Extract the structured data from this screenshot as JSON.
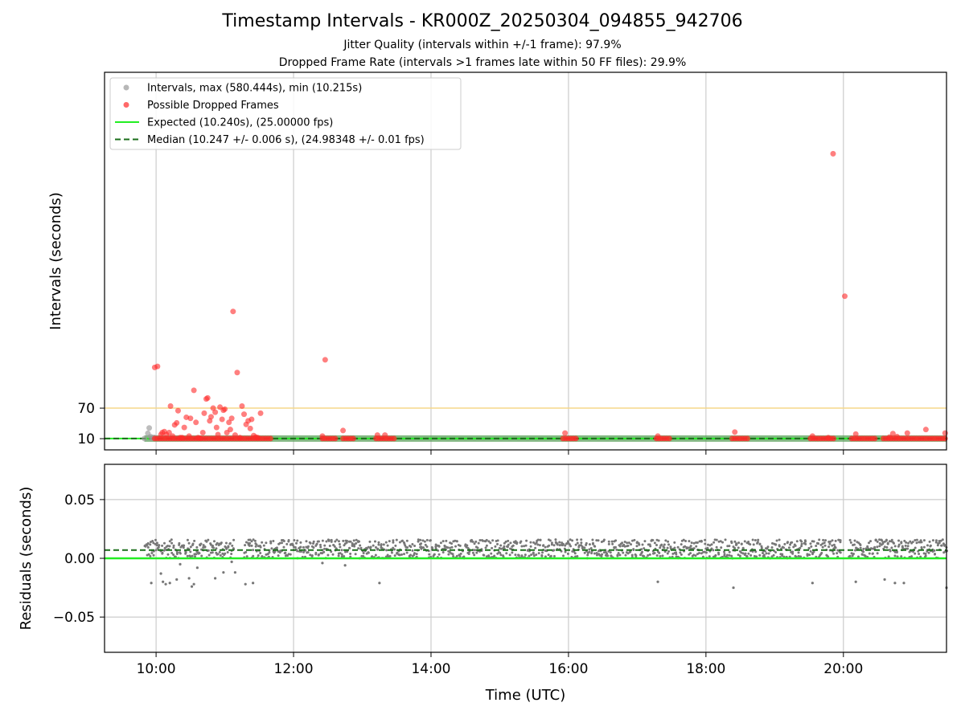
{
  "chart_data": [
    {
      "type": "scatter",
      "title": "Timestamp Intervals - KR000Z_20250304_094855_942706",
      "subtitles": [
        "Jitter Quality (intervals within +/-1 frame): 97.9%",
        "Dropped Frame Rate (intervals >1 frames late within 50 FF files): 29.9%"
      ],
      "ylabel": "Intervals (seconds)",
      "xlabel": "",
      "xlim_hours": [
        9.25,
        21.5
      ],
      "ylim": [
        -12,
        730
      ],
      "yticks": [
        {
          "value": 10,
          "label": "10"
        },
        {
          "value": 70,
          "label": "70"
        }
      ],
      "threshold_line": {
        "value": 70,
        "color": "#f5d78a"
      },
      "grid": "x",
      "legend_position": "top-left",
      "colors": {
        "intervals": "#999999",
        "dropped": "#ff2a2a",
        "expected": "#22ee22",
        "median": "#1a6e1a",
        "band": "#5aa05a"
      },
      "series": [
        {
          "name": "Intervals, max (580.444s), min (10.215s)",
          "kind": "intervals",
          "points": [
            [
              9.83,
              10.3
            ],
            [
              9.88,
              20.5
            ],
            [
              9.9,
              31.0
            ],
            [
              9.92,
              14.0
            ],
            [
              9.94,
              10.8
            ],
            [
              9.97,
              12.5
            ]
          ],
          "band": [
            9.83,
            21.5,
            10.24
          ]
        },
        {
          "name": "Possible Dropped Frames",
          "kind": "dropped",
          "baseline_ranges": [
            [
              9.98,
              11.68
            ],
            [
              12.42,
              12.62
            ],
            [
              12.72,
              12.88
            ],
            [
              13.2,
              13.48
            ],
            [
              15.92,
              16.12
            ],
            [
              17.28,
              17.5
            ],
            [
              18.38,
              18.62
            ],
            [
              19.52,
              19.88
            ],
            [
              20.12,
              20.48
            ],
            [
              20.58,
              21.5
            ]
          ],
          "baseline_value": 10.24,
          "points": [
            [
              9.98,
              150
            ],
            [
              10.02,
              152
            ],
            [
              10.07,
              18
            ],
            [
              10.09,
              22
            ],
            [
              10.12,
              24
            ],
            [
              10.15,
              18
            ],
            [
              10.19,
              22
            ],
            [
              10.21,
              74
            ],
            [
              10.24,
              15
            ],
            [
              10.27,
              37
            ],
            [
              10.3,
              41
            ],
            [
              10.32,
              65
            ],
            [
              10.35,
              12
            ],
            [
              10.38,
              12
            ],
            [
              10.41,
              32
            ],
            [
              10.44,
              52
            ],
            [
              10.48,
              15
            ],
            [
              10.5,
              50
            ],
            [
              10.55,
              105
            ],
            [
              10.58,
              42
            ],
            [
              10.61,
              12
            ],
            [
              10.64,
              11
            ],
            [
              10.68,
              22
            ],
            [
              10.7,
              60
            ],
            [
              10.73,
              88
            ],
            [
              10.75,
              90
            ],
            [
              10.78,
              45
            ],
            [
              10.8,
              53
            ],
            [
              10.83,
              70
            ],
            [
              10.86,
              62
            ],
            [
              10.88,
              32
            ],
            [
              10.9,
              18
            ],
            [
              10.93,
              72
            ],
            [
              10.96,
              48
            ],
            [
              10.98,
              66
            ],
            [
              11.0,
              68
            ],
            [
              11.03,
              22
            ],
            [
              11.06,
              42
            ],
            [
              11.08,
              28
            ],
            [
              11.1,
              50
            ],
            [
              11.12,
              260
            ],
            [
              11.15,
              17
            ],
            [
              11.18,
              140
            ],
            [
              11.22,
              12
            ],
            [
              11.25,
              74
            ],
            [
              11.28,
              58
            ],
            [
              11.31,
              38
            ],
            [
              11.34,
              45
            ],
            [
              11.37,
              30
            ],
            [
              11.39,
              48
            ],
            [
              11.42,
              16
            ],
            [
              11.45,
              13
            ],
            [
              11.48,
              12
            ],
            [
              11.52,
              60
            ],
            [
              12.42,
              15
            ],
            [
              12.46,
              165
            ],
            [
              12.72,
              26
            ],
            [
              13.22,
              17
            ],
            [
              13.33,
              17
            ],
            [
              15.95,
              21
            ],
            [
              17.3,
              15
            ],
            [
              18.42,
              23
            ],
            [
              19.55,
              15
            ],
            [
              19.78,
              12
            ],
            [
              19.85,
              570
            ],
            [
              20.02,
              290
            ],
            [
              20.18,
              19
            ],
            [
              20.67,
              13
            ],
            [
              20.72,
              20
            ],
            [
              20.78,
              14
            ],
            [
              20.93,
              21
            ],
            [
              21.2,
              28
            ],
            [
              21.48,
              21
            ]
          ]
        },
        {
          "name": "Expected (10.240s), (25.00000 fps)",
          "kind": "expected",
          "value": 10.24
        },
        {
          "name": "Median (10.247 +/- 0.006 s), (24.98348 +/- 0.01 fps)",
          "kind": "median",
          "value": 10.247
        }
      ]
    },
    {
      "type": "scatter",
      "ylabel": "Residuals (seconds)",
      "xlabel": "Time (UTC)",
      "xlim_hours": [
        9.25,
        21.5
      ],
      "ylim": [
        -0.08,
        0.08
      ],
      "yticks": [
        {
          "value": 0.05,
          "label": "0.05"
        },
        {
          "value": 0.0,
          "label": "0.00"
        },
        {
          "value": -0.05,
          "label": "−0.05"
        }
      ],
      "xticks": [
        {
          "value": 10,
          "label": "10:00"
        },
        {
          "value": 12,
          "label": "12:00"
        },
        {
          "value": 14,
          "label": "14:00"
        },
        {
          "value": 16,
          "label": "16:00"
        },
        {
          "value": 18,
          "label": "18:00"
        },
        {
          "value": 20,
          "label": "20:00"
        }
      ],
      "grid": "both",
      "colors": {
        "residuals": "#777777",
        "expected": "#22ee22",
        "median": "#1a6e1a"
      },
      "series": [
        {
          "kind": "residuals",
          "segments": [
            [
              9.83,
              11.12
            ],
            [
              11.28,
              19.98
            ],
            [
              20.08,
              21.5
            ]
          ],
          "spread": [
            0.0,
            0.016
          ],
          "outliers": [
            [
              9.93,
              -0.021
            ],
            [
              10.07,
              -0.013
            ],
            [
              10.1,
              -0.02
            ],
            [
              10.14,
              -0.022
            ],
            [
              10.2,
              -0.021
            ],
            [
              10.3,
              -0.018
            ],
            [
              10.35,
              -0.005
            ],
            [
              10.48,
              -0.017
            ],
            [
              10.52,
              -0.024
            ],
            [
              10.55,
              -0.022
            ],
            [
              10.6,
              -0.008
            ],
            [
              10.86,
              -0.017
            ],
            [
              10.98,
              -0.012
            ],
            [
              11.1,
              -0.003
            ],
            [
              11.15,
              -0.012
            ],
            [
              11.3,
              -0.022
            ],
            [
              11.41,
              -0.021
            ],
            [
              12.42,
              -0.004
            ],
            [
              12.75,
              -0.006
            ],
            [
              13.25,
              -0.021
            ],
            [
              17.3,
              -0.02
            ],
            [
              18.4,
              -0.025
            ],
            [
              19.55,
              -0.021
            ],
            [
              20.18,
              -0.02
            ],
            [
              20.6,
              -0.018
            ],
            [
              20.75,
              -0.021
            ],
            [
              20.88,
              -0.021
            ],
            [
              21.5,
              -0.025
            ]
          ]
        },
        {
          "kind": "expected",
          "value": 0.0
        },
        {
          "kind": "median",
          "value": 0.007
        }
      ]
    }
  ]
}
